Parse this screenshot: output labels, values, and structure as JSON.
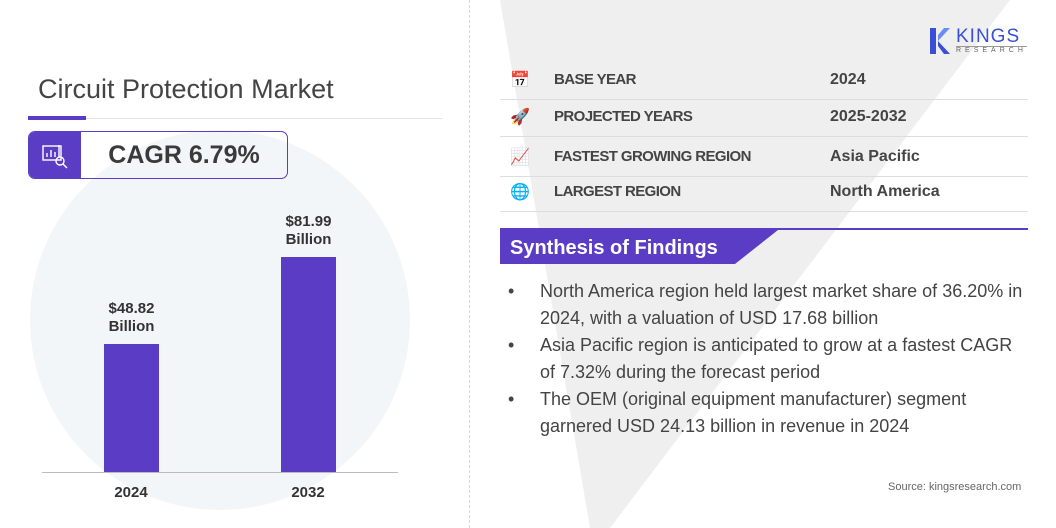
{
  "title": "Circuit Protection Market",
  "cagr": "CAGR 6.79%",
  "logo": {
    "name": "KINGS",
    "sub": "RESEARCH"
  },
  "colors": {
    "accent": "#5b3cc4",
    "logo_blue": "#3a4fd6"
  },
  "chart_data": {
    "type": "bar",
    "categories": [
      "2024",
      "2032"
    ],
    "values": [
      48.82,
      81.99
    ],
    "data_labels": [
      "$48.82 Billion",
      "$81.99 Billion"
    ],
    "unit": "USD Billion",
    "title": "",
    "xlabel": "",
    "ylabel": "",
    "grid": false
  },
  "labels": {
    "b0a": "$48.82",
    "b0b": "Billion",
    "b1a": "$81.99",
    "b1b": "Billion"
  },
  "stats": [
    {
      "icon": "calendar-clock-icon",
      "label": "BASE YEAR",
      "value": "2024"
    },
    {
      "icon": "rocket-icon",
      "label": "PROJECTED YEARS",
      "value": "2025-2032"
    },
    {
      "icon": "growth-chart-icon",
      "label": "FASTEST GROWING REGION",
      "value": "Asia Pacific"
    },
    {
      "icon": "globe-icon",
      "label": "LARGEST REGION",
      "value": "North America"
    }
  ],
  "synthesis": {
    "heading": "Synthesis of Findings",
    "bullet": "•",
    "items": [
      "North America region held largest market share of 36.20% in 2024, with a valuation of USD 17.68 billion",
      "Asia Pacific region is anticipated to grow at a fastest CAGR of 7.32% during the forecast period",
      "The OEM (original equipment manufacturer) segment garnered USD 24.13 billion in revenue in 2024"
    ]
  },
  "source": "Source: kingsresearch.com"
}
